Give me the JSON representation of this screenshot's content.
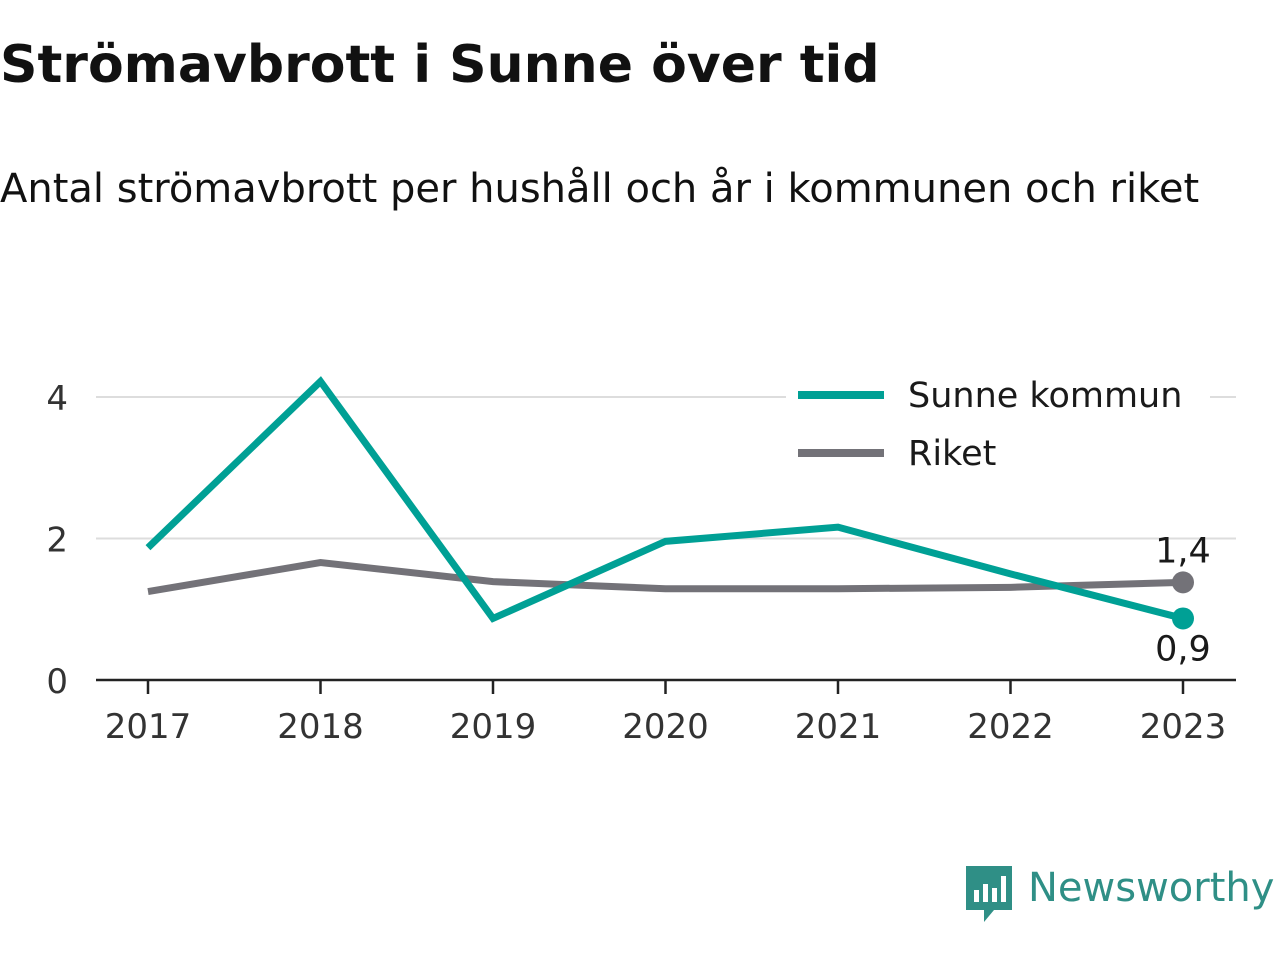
{
  "title": "Strömavbrott i Sunne över tid",
  "subtitle": "Antal strömavbrott per hushåll och år i kommunen och riket",
  "brand": {
    "name": "Newsworthy",
    "color": "#2f8f86",
    "icon": "newsworthy-chart-icon"
  },
  "colors": {
    "sunne": "#00a095",
    "riket": "#737278",
    "grid": "#dddddd",
    "axis": "#222222",
    "text": "#333333"
  },
  "chart_data": {
    "type": "line",
    "title": "Strömavbrott i Sunne över tid",
    "subtitle": "Antal strömavbrott per hushåll och år i kommunen och riket",
    "xlabel": "",
    "ylabel": "",
    "categories": [
      "2017",
      "2018",
      "2019",
      "2020",
      "2021",
      "2022",
      "2023"
    ],
    "ylim": [
      0,
      4.5
    ],
    "yticks": [
      0,
      2,
      4
    ],
    "grid": true,
    "legend_position": "top-right",
    "series": [
      {
        "name": "Sunne kommun",
        "color": "#00a095",
        "values": [
          1.87,
          4.22,
          0.87,
          1.96,
          2.16,
          1.5,
          0.87
        ],
        "end_label": "0,9"
      },
      {
        "name": "Riket",
        "color": "#737278",
        "values": [
          1.25,
          1.66,
          1.39,
          1.29,
          1.29,
          1.31,
          1.38
        ],
        "end_label": "1,4"
      }
    ]
  }
}
